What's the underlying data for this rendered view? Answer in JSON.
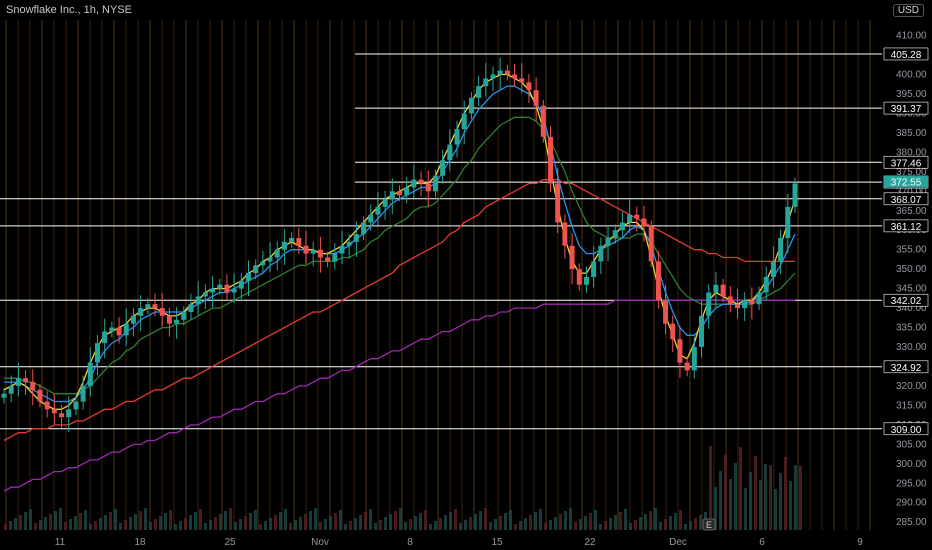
{
  "header": {
    "title": "Snowflake Inc., 1h, NYSE",
    "currency": "USD"
  },
  "x_axis": {
    "labels": [
      "11",
      "18",
      "25",
      "Nov",
      "8",
      "15",
      "22",
      "Dec",
      "6",
      "9"
    ]
  },
  "y_axis": {
    "ticks": [
      "410.00",
      "405.00",
      "400.00",
      "395.00",
      "390.00",
      "385.00",
      "380.00",
      "375.00",
      "370.00",
      "365.00",
      "360.00",
      "355.00",
      "350.00",
      "345.00",
      "340.00",
      "335.00",
      "330.00",
      "325.00",
      "320.00",
      "315.00",
      "310.00",
      "305.00",
      "300.00",
      "295.00",
      "290.00",
      "285.00"
    ]
  },
  "level_labels": [
    "405.28",
    "391.37",
    "377.46",
    "372.37",
    "368.07",
    "361.12",
    "342.02",
    "324.92",
    "309.00"
  ],
  "price_labels": {
    "last": "372.55"
  },
  "earnings_marker": "E",
  "colors": {
    "up": "#26a69a",
    "down": "#ef5350",
    "bg": "#000000",
    "line_white": "#ffffff",
    "ma_fast": "#f5d33b",
    "ma_mid": "#2196f3",
    "ma_slow": "#2e7d32",
    "ma_long": "#e53935",
    "ma_vlong": "#9c27b0",
    "last_label": "#26a69a"
  },
  "chart_data": {
    "type": "candlestick",
    "ylim": [
      283,
      414
    ],
    "horizontal_levels": [
      405.28,
      391.37,
      377.46,
      372.37,
      368.07,
      361.12,
      342.02,
      324.92,
      309.0
    ],
    "last_price": 372.55,
    "close_series": [
      318,
      320,
      322,
      321,
      319,
      316,
      314,
      313,
      312,
      314,
      316,
      320,
      326,
      331,
      334,
      335,
      333,
      336,
      338,
      340,
      341,
      340,
      338,
      336,
      337,
      339,
      341,
      343,
      344,
      345,
      346,
      344,
      345,
      347,
      349,
      351,
      352,
      353,
      355,
      357,
      358,
      356,
      354,
      355,
      353,
      352,
      354,
      356,
      357,
      359,
      362,
      364,
      366,
      368,
      370,
      369,
      371,
      373,
      372,
      370,
      374,
      378,
      382,
      386,
      390,
      394,
      397,
      399,
      400,
      401,
      400,
      399,
      398,
      396,
      392,
      384,
      372,
      362,
      356,
      350,
      346,
      348,
      352,
      356,
      358,
      360,
      362,
      364,
      363,
      361,
      352,
      342,
      336,
      332,
      326,
      324,
      330,
      338,
      344,
      346,
      343,
      341,
      340,
      342,
      341,
      344,
      348,
      352,
      358,
      366,
      372
    ],
    "ma_fast": [
      319,
      320,
      321,
      320,
      318,
      316,
      315,
      314,
      314,
      315,
      317,
      321,
      326,
      330,
      333,
      334,
      335,
      336,
      338,
      339,
      340,
      340,
      339,
      338,
      338,
      339,
      341,
      342,
      344,
      345,
      345,
      345,
      346,
      347,
      349,
      350,
      352,
      353,
      355,
      356,
      357,
      356,
      355,
      355,
      354,
      354,
      355,
      356,
      358,
      360,
      362,
      364,
      366,
      368,
      369,
      370,
      371,
      372,
      372,
      372,
      374,
      378,
      382,
      386,
      390,
      393,
      396,
      398,
      399,
      400,
      400,
      399,
      398,
      396,
      392,
      386,
      376,
      366,
      358,
      352,
      349,
      349,
      352,
      355,
      357,
      359,
      361,
      362,
      362,
      360,
      353,
      345,
      338,
      333,
      328,
      327,
      331,
      337,
      342,
      344,
      343,
      342,
      341,
      342,
      342,
      344,
      347,
      351,
      356,
      362,
      368
    ],
    "ma_mid": [
      321,
      321,
      321,
      320,
      319,
      318,
      317,
      316,
      316,
      316,
      317,
      319,
      322,
      326,
      329,
      331,
      332,
      334,
      335,
      337,
      338,
      339,
      339,
      339,
      339,
      339,
      340,
      341,
      342,
      343,
      344,
      344,
      345,
      346,
      347,
      348,
      349,
      351,
      352,
      354,
      355,
      355,
      355,
      355,
      354,
      354,
      354,
      355,
      356,
      358,
      359,
      361,
      363,
      365,
      367,
      368,
      369,
      370,
      371,
      371,
      372,
      375,
      378,
      381,
      385,
      388,
      391,
      393,
      395,
      396,
      397,
      397,
      396,
      395,
      393,
      389,
      382,
      374,
      367,
      361,
      356,
      354,
      354,
      355,
      356,
      357,
      358,
      360,
      361,
      360,
      356,
      350,
      344,
      339,
      335,
      333,
      333,
      335,
      338,
      340,
      341,
      341,
      341,
      341,
      342,
      343,
      345,
      348,
      351,
      355,
      359
    ],
    "ma_slow": [
      322,
      322,
      322,
      321,
      321,
      320,
      319,
      318,
      318,
      318,
      318,
      319,
      320,
      322,
      324,
      326,
      327,
      329,
      330,
      332,
      333,
      334,
      335,
      335,
      336,
      336,
      337,
      338,
      339,
      340,
      340,
      341,
      342,
      343,
      344,
      345,
      346,
      347,
      348,
      349,
      350,
      351,
      351,
      352,
      352,
      352,
      352,
      353,
      353,
      354,
      355,
      357,
      358,
      360,
      361,
      362,
      363,
      365,
      366,
      366,
      367,
      369,
      371,
      373,
      376,
      378,
      381,
      383,
      385,
      387,
      388,
      389,
      389,
      389,
      388,
      386,
      383,
      379,
      375,
      370,
      366,
      362,
      360,
      359,
      358,
      358,
      358,
      358,
      359,
      359,
      357,
      354,
      351,
      348,
      345,
      343,
      342,
      341,
      341,
      341,
      341,
      341,
      341,
      341,
      341,
      342,
      343,
      344,
      345,
      347,
      349
    ],
    "ma_long": [
      306,
      307,
      308,
      308,
      309,
      309,
      309,
      310,
      310,
      310,
      311,
      311,
      312,
      313,
      314,
      314,
      315,
      316,
      316,
      317,
      318,
      319,
      319,
      320,
      321,
      322,
      322,
      323,
      324,
      325,
      326,
      327,
      328,
      329,
      330,
      331,
      332,
      333,
      334,
      335,
      336,
      337,
      338,
      339,
      339,
      340,
      341,
      342,
      343,
      344,
      345,
      346,
      347,
      348,
      349,
      351,
      352,
      353,
      354,
      355,
      356,
      357,
      359,
      360,
      362,
      363,
      364,
      366,
      367,
      368,
      369,
      370,
      371,
      372,
      372,
      373,
      373,
      373,
      372,
      372,
      371,
      370,
      369,
      368,
      367,
      366,
      365,
      364,
      363,
      362,
      361,
      360,
      359,
      358,
      357,
      356,
      355,
      355,
      354,
      354,
      353,
      353,
      353,
      352,
      352,
      352,
      352,
      352,
      352,
      352,
      352
    ],
    "ma_vlong": [
      293,
      294,
      294,
      295,
      296,
      296,
      297,
      298,
      298,
      299,
      299,
      300,
      301,
      301,
      302,
      303,
      303,
      304,
      305,
      305,
      306,
      306,
      307,
      308,
      308,
      309,
      310,
      310,
      311,
      312,
      312,
      313,
      314,
      314,
      315,
      316,
      316,
      317,
      318,
      318,
      319,
      320,
      320,
      321,
      322,
      322,
      323,
      324,
      324,
      325,
      326,
      327,
      327,
      328,
      329,
      329,
      330,
      331,
      332,
      332,
      333,
      334,
      334,
      335,
      336,
      337,
      337,
      338,
      338,
      339,
      339,
      340,
      340,
      340,
      340,
      341,
      341,
      341,
      341,
      341,
      341,
      341,
      341,
      341,
      341,
      342,
      342,
      342,
      342,
      342,
      342,
      342,
      342,
      342,
      342,
      342,
      342,
      342,
      342,
      342,
      342,
      342,
      342,
      342,
      342,
      342,
      342,
      342,
      342,
      342,
      342
    ]
  }
}
